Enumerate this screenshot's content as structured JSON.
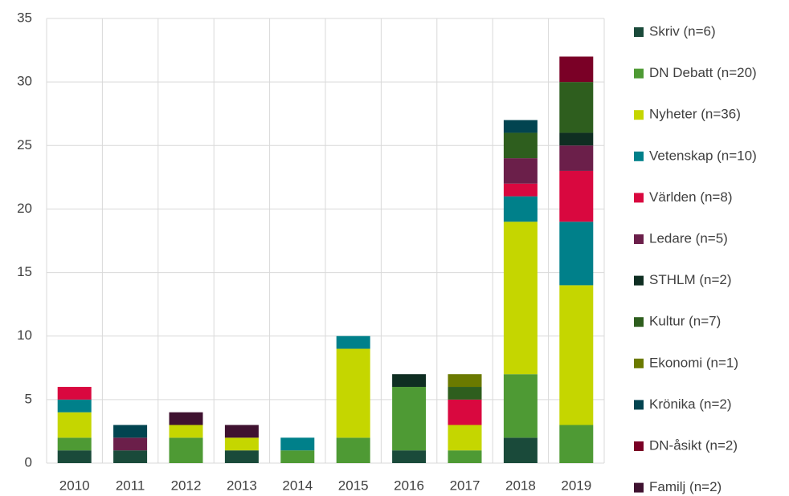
{
  "chart_data": {
    "type": "stacked_bar",
    "categories": [
      "2010",
      "2011",
      "2012",
      "2013",
      "2014",
      "2015",
      "2016",
      "2017",
      "2018",
      "2019"
    ],
    "series": [
      {
        "name": "Skriv (n=6)",
        "color": "#1a4a3a",
        "values": [
          1,
          1,
          0,
          1,
          0,
          0,
          1,
          0,
          2,
          0
        ]
      },
      {
        "name": "DN Debatt (n=20)",
        "color": "#4e9a34",
        "values": [
          1,
          0,
          2,
          0,
          1,
          2,
          5,
          1,
          5,
          3
        ]
      },
      {
        "name": "Nyheter (n=36)",
        "color": "#c5d600",
        "values": [
          2,
          0,
          1,
          1,
          0,
          7,
          0,
          2,
          12,
          11
        ]
      },
      {
        "name": "Vetenskap (n=10)",
        "color": "#00808a",
        "values": [
          1,
          0,
          0,
          0,
          1,
          1,
          0,
          0,
          2,
          5
        ]
      },
      {
        "name": "Världen (n=8)",
        "color": "#d9083f",
        "values": [
          1,
          0,
          0,
          0,
          0,
          0,
          0,
          2,
          1,
          4
        ]
      },
      {
        "name": "Ledare (n=5)",
        "color": "#6b1f4a",
        "values": [
          0,
          1,
          0,
          0,
          0,
          0,
          0,
          0,
          2,
          2
        ]
      },
      {
        "name": "STHLM (n=2)",
        "color": "#0f2e22",
        "values": [
          0,
          0,
          0,
          0,
          0,
          0,
          1,
          0,
          0,
          1
        ]
      },
      {
        "name": "Kultur (n=7)",
        "color": "#2e5e1e",
        "values": [
          0,
          0,
          0,
          0,
          0,
          0,
          0,
          1,
          2,
          4
        ]
      },
      {
        "name": "Ekonomi (n=1)",
        "color": "#6b7a00",
        "values": [
          0,
          0,
          0,
          0,
          0,
          0,
          0,
          1,
          0,
          0
        ]
      },
      {
        "name": " Krönika (n=2)",
        "color": "#024450",
        "values": [
          0,
          1,
          0,
          0,
          0,
          0,
          0,
          0,
          1,
          0
        ]
      },
      {
        "name": "DN-åsikt (n=2)",
        "color": "#7a0026",
        "values": [
          0,
          0,
          0,
          0,
          0,
          0,
          0,
          0,
          0,
          2
        ]
      },
      {
        "name": "Familj (n=2)",
        "color": "#3f1230",
        "values": [
          0,
          0,
          1,
          1,
          0,
          0,
          0,
          0,
          0,
          0
        ]
      }
    ],
    "ylim": [
      0,
      35
    ],
    "yticks": [
      0,
      5,
      10,
      15,
      20,
      25,
      30,
      35
    ],
    "grid": true,
    "legend": "right"
  }
}
